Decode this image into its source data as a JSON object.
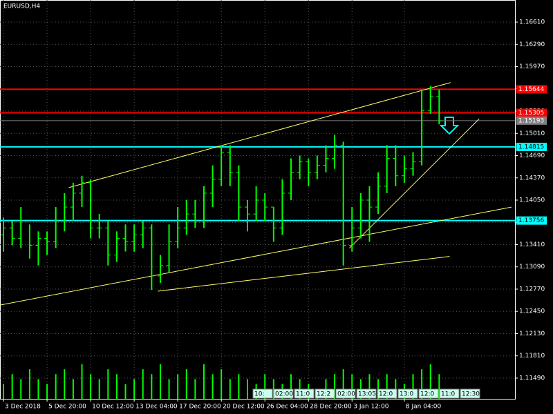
{
  "chart_data": {
    "type": "ohlc",
    "title": "EURUSD,H4",
    "categories": [
      "3 Dec 2018",
      null,
      null,
      null,
      null,
      "5 Dec 20:00",
      null,
      null,
      null,
      null,
      "10 Dec 12:00",
      null,
      null,
      null,
      null,
      "13 Dec 04:00",
      null,
      null,
      null,
      null,
      "17 Dec 20:00",
      null,
      null,
      null,
      null,
      "20 Dec 12:00",
      null,
      null,
      null,
      null,
      "26 Dec 04:00",
      null,
      null,
      null,
      null,
      "28 Dec 20:00",
      null,
      null,
      null,
      null,
      "3 Jan 12:00",
      null,
      null,
      null,
      null,
      null,
      "8 Jan 04:00",
      null,
      null,
      null,
      null
    ],
    "open": [
      1.1355,
      1.1365,
      1.135,
      1.1375,
      1.134,
      1.135,
      1.1345,
      1.1375,
      1.1395,
      1.1415,
      1.143,
      1.1365,
      1.1365,
      1.1326,
      1.135,
      1.1345,
      1.1355,
      1.1365,
      1.1296,
      1.1311,
      1.1345,
      1.1365,
      1.1385,
      1.1375,
      1.1415,
      1.1435,
      1.1474,
      1.1445,
      1.1395,
      1.1385,
      1.1405,
      1.1395,
      1.1365,
      1.1415,
      1.1445,
      1.146,
      1.1445,
      1.1455,
      1.1465,
      1.1484,
      1.134,
      1.1365,
      1.1405,
      1.1395,
      1.1425,
      1.1465,
      1.144,
      1.145,
      1.146,
      1.1534,
      1.1554
    ],
    "high": [
      1.138,
      1.1375,
      1.1395,
      1.137,
      1.136,
      1.136,
      1.1395,
      1.1415,
      1.143,
      1.144,
      1.1435,
      1.1385,
      1.1375,
      1.136,
      1.137,
      1.137,
      1.1375,
      1.137,
      1.1326,
      1.137,
      1.1395,
      1.1405,
      1.1405,
      1.1425,
      1.1455,
      1.1484,
      1.1484,
      1.1455,
      1.1405,
      1.1425,
      1.1415,
      1.1395,
      1.1435,
      1.1465,
      1.1469,
      1.1465,
      1.1469,
      1.1484,
      1.1499,
      1.1489,
      1.1395,
      1.1415,
      1.1425,
      1.1445,
      1.1484,
      1.1484,
      1.1469,
      1.1474,
      1.1564,
      1.1569,
      1.1564
    ],
    "low": [
      1.1331,
      1.134,
      1.1336,
      1.1321,
      1.1311,
      1.1326,
      1.1336,
      1.136,
      1.1375,
      1.1395,
      1.135,
      1.135,
      1.1311,
      1.1316,
      1.1331,
      1.1331,
      1.1336,
      1.1276,
      1.1286,
      1.1301,
      1.1336,
      1.1355,
      1.1365,
      1.1365,
      1.1395,
      1.1425,
      1.1425,
      1.1375,
      1.136,
      1.1375,
      1.1375,
      1.1345,
      1.1355,
      1.1405,
      1.1435,
      1.1425,
      1.1435,
      1.1445,
      1.145,
      1.1311,
      1.1331,
      1.135,
      1.1345,
      1.1385,
      1.1415,
      1.1425,
      1.143,
      1.144,
      1.1455,
      1.1529,
      1.1514
    ],
    "close": [
      1.1365,
      1.135,
      1.1375,
      1.134,
      1.135,
      1.1345,
      1.1375,
      1.1395,
      1.1415,
      1.143,
      1.1365,
      1.1365,
      1.1326,
      1.135,
      1.1345,
      1.1355,
      1.1365,
      1.1296,
      1.1311,
      1.1345,
      1.1365,
      1.1385,
      1.1375,
      1.1415,
      1.1435,
      1.1474,
      1.1445,
      1.1395,
      1.1385,
      1.1405,
      1.1395,
      1.1365,
      1.1415,
      1.1445,
      1.146,
      1.1445,
      1.1455,
      1.1465,
      1.1484,
      1.134,
      1.1365,
      1.1405,
      1.1395,
      1.1425,
      1.1465,
      1.144,
      1.145,
      1.146,
      1.1534,
      1.1554,
      1.1519
    ],
    "volume": [
      3,
      5,
      4,
      6,
      4,
      3,
      5,
      6,
      4,
      7,
      5,
      4,
      6,
      5,
      3,
      4,
      6,
      5,
      7,
      4,
      5,
      6,
      4,
      7,
      5,
      6,
      4,
      5,
      4,
      3,
      5,
      4,
      3,
      5,
      4,
      3,
      2,
      4,
      5,
      6,
      5,
      4,
      5,
      4,
      5,
      4,
      3,
      5,
      6,
      7,
      5
    ],
    "color": "#00ff00",
    "xlim": [
      -0.4,
      58.7
    ],
    "ylim": [
      1.11192,
      1.16928
    ],
    "yticks": [
      {
        "value": 1.1661,
        "label": "1.16610"
      },
      {
        "value": 1.1629,
        "label": "1.16290"
      },
      {
        "value": 1.1597,
        "label": "1.15970"
      },
      {
        "value": 1.1565,
        "label": "1.15650"
      },
      {
        "value": 1.1533,
        "label": "1.15330"
      },
      {
        "value": 1.1501,
        "label": "1.15010"
      },
      {
        "value": 1.1469,
        "label": "1.14690"
      },
      {
        "value": 1.1437,
        "label": "1.14370"
      },
      {
        "value": 1.1405,
        "label": "1.14050"
      },
      {
        "value": 1.1373,
        "label": "1.13730"
      },
      {
        "value": 1.1341,
        "label": "1.13410"
      },
      {
        "value": 1.1309,
        "label": "1.13090"
      },
      {
        "value": 1.1277,
        "label": "1.12770"
      },
      {
        "value": 1.1245,
        "label": "1.12450"
      },
      {
        "value": 1.1213,
        "label": "1.12130"
      },
      {
        "value": 1.1181,
        "label": "1.11810"
      },
      {
        "value": 1.1149,
        "label": "1.11490"
      }
    ],
    "grid": true,
    "levels": [
      {
        "value": 1.15644,
        "color": "#ff0000"
      },
      {
        "value": 1.15305,
        "color": "#ff0000"
      },
      {
        "value": 1.15193,
        "color": "#808080"
      },
      {
        "value": 1.14815,
        "color": "#00ffff"
      },
      {
        "value": 1.13756,
        "color": "#00ffff"
      }
    ],
    "trendlines": [
      {
        "x": [
          7.5,
          51.3
        ],
        "y": [
          1.1423,
          1.1574
        ]
      },
      {
        "x": [
          39.7,
          54.6
        ],
        "y": [
          1.1336,
          1.1522
        ]
      },
      {
        "x": [
          -0.4,
          58.3
        ],
        "y": [
          1.1254,
          1.1395
        ]
      },
      {
        "x": [
          17.7,
          51.2
        ],
        "y": [
          1.1274,
          1.1324
        ]
      }
    ],
    "trendline_color": "#ffff66",
    "time_marks": [
      "10:",
      "02:00",
      "11:0",
      "12:2",
      "02:00",
      "13:05",
      "12:0",
      "13:0",
      "12:0",
      "11:0",
      "12:30"
    ]
  }
}
